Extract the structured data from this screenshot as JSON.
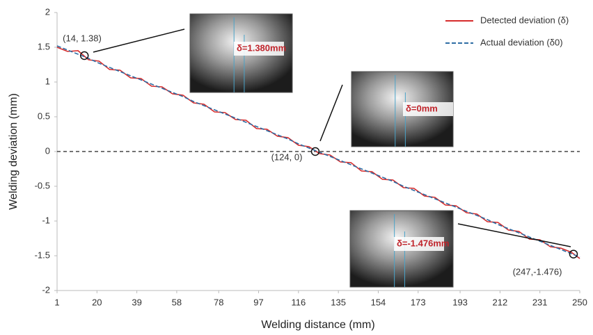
{
  "chart_data": {
    "type": "line",
    "x_label": "Welding distance (mm)",
    "y_label": "Welding deviation (mm)",
    "x": [
      1,
      6,
      11,
      16,
      21,
      26,
      31,
      36,
      41,
      46,
      51,
      56,
      61,
      66,
      71,
      76,
      81,
      86,
      91,
      96,
      101,
      106,
      111,
      116,
      121,
      126,
      131,
      136,
      141,
      146,
      151,
      156,
      161,
      166,
      171,
      176,
      181,
      186,
      191,
      196,
      201,
      206,
      211,
      216,
      221,
      226,
      231,
      236,
      241,
      246,
      250
    ],
    "series": [
      {
        "name": "Detected deviation (δ)",
        "color": "#d62b2b",
        "line_style": "solid",
        "values": [
          1.5,
          1.44,
          1.45,
          1.32,
          1.3,
          1.18,
          1.17,
          1.06,
          1.05,
          0.94,
          0.93,
          0.83,
          0.81,
          0.7,
          0.68,
          0.57,
          0.56,
          0.46,
          0.45,
          0.33,
          0.32,
          0.22,
          0.2,
          0.09,
          0.07,
          -0.03,
          -0.05,
          -0.15,
          -0.16,
          -0.28,
          -0.29,
          -0.4,
          -0.41,
          -0.52,
          -0.53,
          -0.64,
          -0.66,
          -0.77,
          -0.78,
          -0.88,
          -0.9,
          -1.01,
          -1.02,
          -1.13,
          -1.15,
          -1.26,
          -1.27,
          -1.37,
          -1.39,
          -1.45,
          -1.54
        ]
      },
      {
        "name": "Actual deviation (δ0)",
        "color": "#2e6da4",
        "line_style": "dashed",
        "values": [
          1.52,
          1.46,
          1.4,
          1.34,
          1.27,
          1.21,
          1.15,
          1.09,
          1.03,
          0.97,
          0.91,
          0.85,
          0.79,
          0.72,
          0.66,
          0.6,
          0.54,
          0.48,
          0.42,
          0.36,
          0.3,
          0.24,
          0.18,
          0.11,
          0.05,
          -0.01,
          -0.07,
          -0.13,
          -0.19,
          -0.25,
          -0.31,
          -0.37,
          -0.43,
          -0.5,
          -0.56,
          -0.62,
          -0.68,
          -0.74,
          -0.8,
          -0.86,
          -0.92,
          -0.98,
          -1.05,
          -1.11,
          -1.17,
          -1.23,
          -1.29,
          -1.35,
          -1.41,
          -1.47,
          -1.52
        ]
      }
    ],
    "xlim": [
      1,
      250
    ],
    "xticks": [
      1,
      20,
      39,
      58,
      78,
      97,
      116,
      135,
      154,
      173,
      193,
      212,
      231,
      250
    ],
    "ylim": [
      -2,
      2
    ],
    "yticks": [
      -2,
      -1.5,
      -1,
      -0.5,
      0,
      0.5,
      1,
      1.5,
      2
    ],
    "reference_line": 0,
    "legend": "top-right",
    "points": [
      {
        "x": 14,
        "y": 1.38,
        "label": "(14, 1.38)",
        "inset": "δ=1.380mm"
      },
      {
        "x": 124,
        "y": 0,
        "label": "(124, 0)",
        "inset": "δ=0mm"
      },
      {
        "x": 247,
        "y": -1.476,
        "label": "(247,-1.476)",
        "inset": "δ=-1.476mm"
      }
    ]
  }
}
